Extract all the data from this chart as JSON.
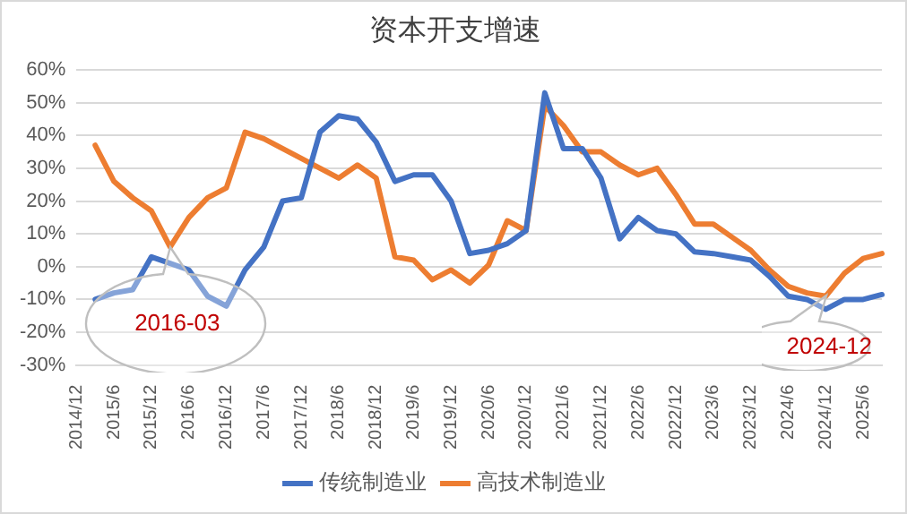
{
  "chart_data": {
    "type": "line",
    "title": "资本开支增速",
    "categories": [
      "2014/12",
      null,
      "2015/6",
      null,
      "2015/12",
      null,
      "2016/6",
      null,
      "2016/12",
      null,
      "2017/6",
      null,
      "2017/12",
      null,
      "2018/6",
      null,
      "2018/12",
      null,
      "2019/6",
      null,
      "2019/12",
      null,
      "2020/6",
      null,
      "2020/12",
      null,
      "2021/6",
      null,
      "2021/12",
      null,
      "2022/6",
      null,
      "2022/12",
      null,
      "2023/6",
      null,
      "2023/12",
      null,
      "2024/6",
      null,
      "2024/12",
      null,
      "2025/6",
      null
    ],
    "series": [
      {
        "name": "传统制造业",
        "color": "#4472c4",
        "values": [
          null,
          -10,
          -8,
          -7,
          3,
          1,
          -1,
          -9,
          -12,
          -1,
          6,
          20,
          21,
          41,
          46,
          45,
          38,
          26,
          28,
          28,
          20,
          4,
          5,
          7,
          11,
          53,
          36,
          36,
          27,
          8.5,
          15,
          11,
          10,
          4.5,
          4,
          3,
          2,
          -3,
          -9,
          -10,
          -13,
          -10,
          -10,
          -8.5
        ]
      },
      {
        "name": "高技术制造业",
        "color": "#ed7d31",
        "values": [
          null,
          37,
          26,
          21,
          17,
          6,
          15,
          21,
          24,
          41,
          39,
          36,
          33,
          30,
          27,
          31,
          27,
          3,
          2,
          -4,
          -1,
          -5,
          0.5,
          14,
          11,
          49,
          43,
          35,
          35,
          31,
          28,
          30,
          22,
          13,
          13,
          9,
          5,
          -1,
          -6,
          -8,
          -9,
          -2,
          2.5,
          4
        ]
      }
    ],
    "ylim": [
      -30,
      60
    ],
    "yticks": [
      {
        "value": -30,
        "label": "-30%"
      },
      {
        "value": -20,
        "label": "-20%"
      },
      {
        "value": -10,
        "label": "-10%"
      },
      {
        "value": 0,
        "label": "0%"
      },
      {
        "value": 10,
        "label": "10%"
      },
      {
        "value": 20,
        "label": "20%"
      },
      {
        "value": 30,
        "label": "30%"
      },
      {
        "value": 40,
        "label": "40%"
      },
      {
        "value": 50,
        "label": "50%"
      },
      {
        "value": 60,
        "label": "60%"
      }
    ],
    "grid": "y",
    "legend": "bottom",
    "marker": "none",
    "line_style": "solid",
    "annotations": [
      "2016-03",
      "2024-12"
    ]
  }
}
